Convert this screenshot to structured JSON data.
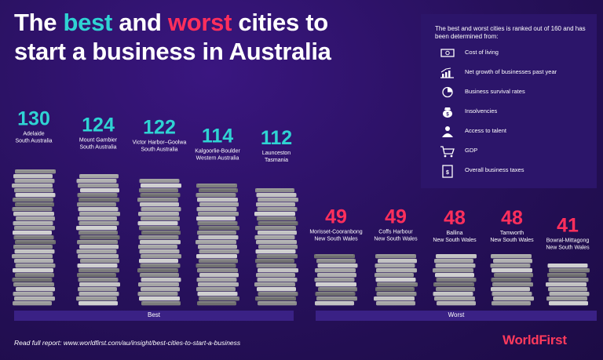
{
  "title": {
    "part1": "The ",
    "best": "best",
    "part2": " and ",
    "worst": "worst",
    "part3": " cities to",
    "line2": "start a business in Australia"
  },
  "legend": {
    "intro": "The best and worst cities is ranked out of 160 and has been determined from:",
    "items": [
      {
        "icon": "money-icon",
        "label": "Cost of living"
      },
      {
        "icon": "growth-chart-icon",
        "label": "Net growth of businesses past year"
      },
      {
        "icon": "pie-chart-icon",
        "label": "Business survival rates"
      },
      {
        "icon": "money-bag-icon",
        "label": "Insolvencies"
      },
      {
        "icon": "talent-icon",
        "label": "Access to talent"
      },
      {
        "icon": "cart-icon",
        "label": "GDP"
      },
      {
        "icon": "tax-document-icon",
        "label": "Overall business taxes"
      }
    ]
  },
  "groups": {
    "best": "Best",
    "worst": "Worst"
  },
  "footer": "Read full report: www.worldfirst.com/au/insight/best-cities-to-start-a-business",
  "brand": "WorldFirst",
  "colors": {
    "best": "#2fd3d3",
    "worst": "#ff2f5c",
    "background": "#26105a"
  },
  "chart_data": {
    "type": "bar",
    "categories": [
      "Adelaide South Australia",
      "Mount Gambier South Australia",
      "Victor Harbor–Goolwa South Australia",
      "Kalgoorlie-Boulder Western Australia",
      "Launceston Tasmania",
      "Morisset-Cooranbong New South Wales",
      "Coffs Harbour New South Wales",
      "Ballina New South Wales",
      "Tamworth New South Wales",
      "Bowral-Mittagong New South Wales"
    ],
    "bars": [
      {
        "city": "Adelaide",
        "region": "South Australia",
        "value": 130,
        "group": "best"
      },
      {
        "city": "Mount Gambier",
        "region": "South Australia",
        "value": 124,
        "group": "best"
      },
      {
        "city": "Victor Harbor–Goolwa",
        "region": "South Australia",
        "value": 122,
        "group": "best"
      },
      {
        "city": "Kalgoorlie-Boulder",
        "region": "Western Australia",
        "value": 114,
        "group": "best"
      },
      {
        "city": "Launceston",
        "region": "Tasmania",
        "value": 112,
        "group": "best"
      },
      {
        "city": "Morisset-Cooranbong",
        "region": "New South Wales",
        "value": 49,
        "group": "worst"
      },
      {
        "city": "Coffs Harbour",
        "region": "New South Wales",
        "value": 49,
        "group": "worst"
      },
      {
        "city": "Ballina",
        "region": "New South Wales",
        "value": 48,
        "group": "worst"
      },
      {
        "city": "Tamworth",
        "region": "New South Wales",
        "value": 48,
        "group": "worst"
      },
      {
        "city": "Bowral-Mittagong",
        "region": "New South Wales",
        "value": 41,
        "group": "worst"
      }
    ],
    "ylim": [
      0,
      160
    ]
  }
}
